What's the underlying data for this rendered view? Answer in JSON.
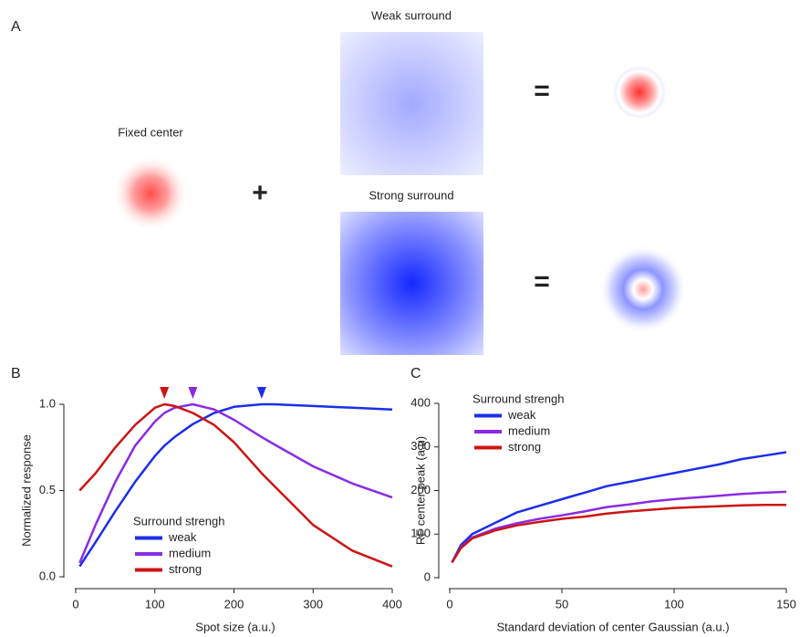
{
  "figure": {
    "panel_labels": [
      "A",
      "B",
      "C"
    ],
    "diagram": {
      "fixed_center": "Fixed center",
      "weak_surround": "Weak surround",
      "strong_surround": "Strong surround",
      "plus": "+",
      "equals": "="
    }
  },
  "chart_data": [
    {
      "type": "line",
      "xlabel": "Spot size (a.u.)",
      "ylabel": "Normalized response",
      "x": [
        5,
        25,
        50,
        75,
        100,
        112,
        125,
        148,
        175,
        200,
        235,
        250,
        300,
        350,
        400
      ],
      "xlim": [
        0,
        400
      ],
      "xticks": [
        0,
        100,
        200,
        300,
        400
      ],
      "ylim": [
        0,
        1
      ],
      "yticks": [
        {
          "value": 0,
          "label": "0.0"
        },
        0.5,
        {
          "value": 1,
          "label": "1.0"
        }
      ],
      "grid": false,
      "legend": "lower left",
      "legend_title": "Surround strengh",
      "series": [
        {
          "name": "weak",
          "color": "#1c2ee8",
          "peak": 235,
          "values": [
            0.06,
            0.2,
            0.38,
            0.55,
            0.7,
            0.76,
            0.81,
            0.885,
            0.95,
            0.985,
            1.0,
            1.0,
            0.99,
            0.98,
            0.97
          ]
        },
        {
          "name": "medium",
          "color": "#8a2be2",
          "peak": 148,
          "values": [
            0.08,
            0.3,
            0.55,
            0.76,
            0.9,
            0.95,
            0.98,
            1.0,
            0.97,
            0.91,
            0.81,
            0.77,
            0.64,
            0.54,
            0.46
          ]
        },
        {
          "name": "strong",
          "color": "#cc1414",
          "peak": 112,
          "values": [
            0.5,
            0.6,
            0.75,
            0.88,
            0.98,
            1.0,
            0.99,
            0.95,
            0.88,
            0.78,
            0.6,
            0.53,
            0.3,
            0.15,
            0.06
          ]
        }
      ]
    },
    {
      "type": "line",
      "xlabel": "Standard deviation of center Gaussian (a.u.)",
      "ylabel": "RF center peak (a.u)",
      "x": [
        1,
        5,
        10,
        20,
        30,
        40,
        50,
        60,
        70,
        80,
        90,
        100,
        110,
        120,
        130,
        140,
        150
      ],
      "xlim": [
        0,
        150
      ],
      "xticks": [
        0,
        50,
        100,
        150
      ],
      "ylim": [
        0,
        400
      ],
      "yticks": [
        0,
        100,
        200,
        300,
        400
      ],
      "grid": false,
      "legend": "upper left",
      "legend_title": "Surround strengh",
      "series": [
        {
          "name": "weak",
          "color": "#1c2ee8",
          "values": [
            35,
            75,
            100,
            125,
            150,
            165,
            180,
            195,
            210,
            220,
            230,
            240,
            250,
            260,
            272,
            280,
            288
          ]
        },
        {
          "name": "medium",
          "color": "#8a2be2",
          "values": [
            35,
            70,
            92,
            112,
            125,
            135,
            143,
            152,
            162,
            168,
            175,
            180,
            184,
            188,
            192,
            195,
            197
          ]
        },
        {
          "name": "strong",
          "color": "#cc1414",
          "values": [
            35,
            68,
            90,
            108,
            120,
            128,
            135,
            140,
            147,
            152,
            156,
            160,
            162,
            164,
            166,
            167,
            167
          ]
        }
      ]
    }
  ]
}
